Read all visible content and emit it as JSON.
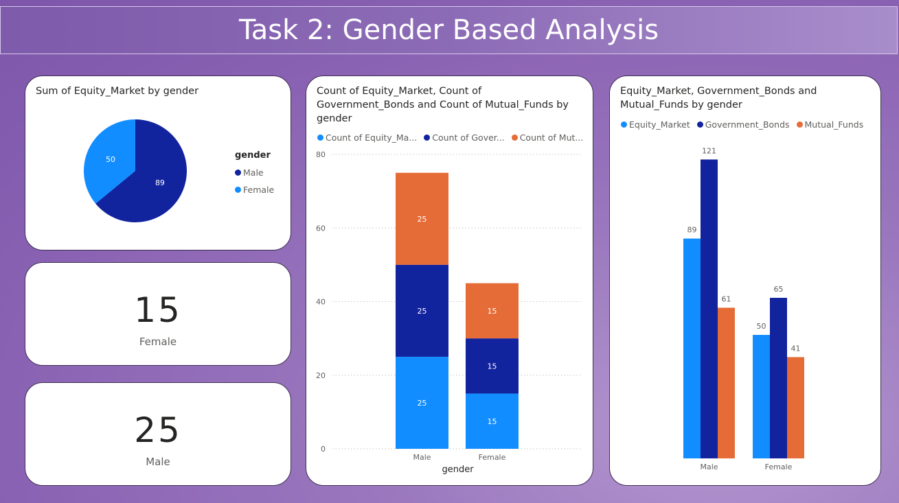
{
  "banner": {
    "title": "Task 2: Gender Based Analysis"
  },
  "pie": {
    "title": "Sum of Equity_Market by gender",
    "legend_title": "gender",
    "legend": [
      {
        "label": "Male",
        "color": "#12239e"
      },
      {
        "label": "Female",
        "color": "#118dff"
      }
    ]
  },
  "kpi_female": {
    "value": "15",
    "label": "Female"
  },
  "kpi_male": {
    "value": "25",
    "label": "Male"
  },
  "stacked": {
    "title": "Count of Equity_Market, Count of Government_Bonds and Count of Mutual_Funds by gender",
    "legend": [
      {
        "label": "Count of Equity_Ma...",
        "color": "#118dff"
      },
      {
        "label": "Count of Gover...",
        "color": "#12239e"
      },
      {
        "label": "Count of Mut...",
        "color": "#e66c37"
      }
    ],
    "xlabel": "gender"
  },
  "clustered": {
    "title": "Equity_Market, Government_Bonds and Mutual_Funds by gender",
    "legend": [
      {
        "label": "Equity_Market",
        "color": "#118dff"
      },
      {
        "label": "Government_Bonds",
        "color": "#12239e"
      },
      {
        "label": "Mutual_Funds",
        "color": "#e66c37"
      }
    ]
  },
  "chart_data": [
    {
      "type": "pie",
      "title": "Sum of Equity_Market by gender",
      "legend_title": "gender",
      "categories": [
        "Male",
        "Female"
      ],
      "values": [
        89,
        50
      ],
      "colors": [
        "#12239e",
        "#118dff"
      ],
      "legend_position": "right"
    },
    {
      "type": "bar",
      "stacked": true,
      "title": "Count of Equity_Market, Count of Government_Bonds and Count of Mutual_Funds by gender",
      "xlabel": "gender",
      "categories": [
        "Male",
        "Female"
      ],
      "series": [
        {
          "name": "Count of Equity_Ma...",
          "values": [
            25,
            15
          ],
          "color": "#118dff"
        },
        {
          "name": "Count of Gover...",
          "values": [
            25,
            15
          ],
          "color": "#12239e"
        },
        {
          "name": "Count of Mut...",
          "values": [
            25,
            15
          ],
          "color": "#e66c37"
        }
      ],
      "ylim": [
        0,
        80
      ],
      "yticks": [
        0,
        20,
        40,
        60,
        80
      ],
      "grid": true,
      "legend_position": "top"
    },
    {
      "type": "bar",
      "stacked": false,
      "title": "Equity_Market, Government_Bonds and Mutual_Funds by gender",
      "categories": [
        "Male",
        "Female"
      ],
      "series": [
        {
          "name": "Equity_Market",
          "values": [
            89,
            50
          ],
          "color": "#118dff"
        },
        {
          "name": "Government_Bonds",
          "values": [
            121,
            65
          ],
          "color": "#12239e"
        },
        {
          "name": "Mutual_Funds",
          "values": [
            61,
            41
          ],
          "color": "#e66c37"
        }
      ],
      "grid": false,
      "legend_position": "top"
    }
  ]
}
